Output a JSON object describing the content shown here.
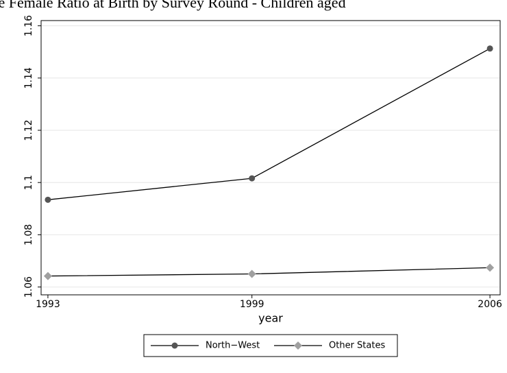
{
  "chart_data": {
    "type": "line",
    "title": "Male Female Ratio at Birth by Survey Round - Children aged",
    "x_label": "year",
    "x": [
      1993,
      1999,
      2006
    ],
    "xlim": [
      1992.8,
      2006.3
    ],
    "xticks": [
      1993,
      1999,
      2006
    ],
    "ylim": [
      1.057,
      1.162
    ],
    "yticks": [
      1.06,
      1.08,
      1.1,
      1.12,
      1.14,
      1.16
    ],
    "grid": true,
    "legend": "bottom",
    "series": [
      {
        "name": "North−West",
        "color": "#555555",
        "marker": "circle",
        "values": [
          1.0934,
          1.1016,
          1.1513
        ]
      },
      {
        "name": "Other States",
        "color": "#a0a0a0",
        "marker": "diamond",
        "values": [
          1.0642,
          1.065,
          1.0674
        ]
      }
    ]
  }
}
